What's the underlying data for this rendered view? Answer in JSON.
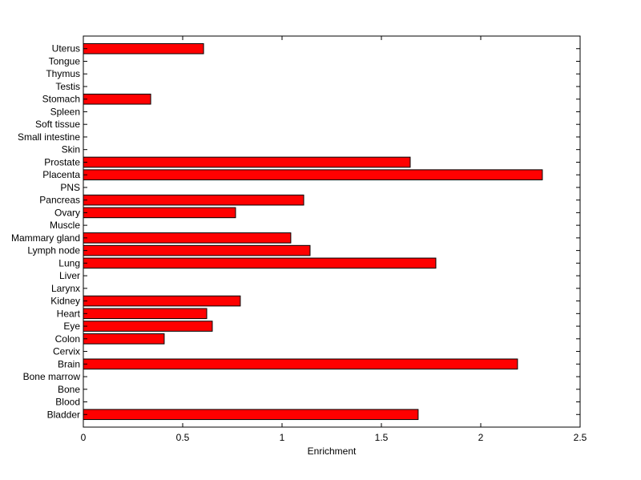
{
  "chart_data": {
    "type": "bar",
    "orientation": "horizontal",
    "title": "",
    "xlabel": "Enrichment",
    "ylabel": "",
    "xlim": [
      0,
      2.5
    ],
    "xticks": [
      0,
      0.5,
      1,
      1.5,
      2,
      2.5
    ],
    "xtick_labels": [
      "0",
      "0.5",
      "1",
      "1.5",
      "2",
      "2.5"
    ],
    "grid": false,
    "bar_color": "#ff0000",
    "categories": [
      "Bladder",
      "Blood",
      "Bone",
      "Bone marrow",
      "Brain",
      "Cervix",
      "Colon",
      "Eye",
      "Heart",
      "Kidney",
      "Larynx",
      "Liver",
      "Lung",
      "Lymph node",
      "Mammary gland",
      "Muscle",
      "Ovary",
      "Pancreas",
      "PNS",
      "Placenta",
      "Prostate",
      "Skin",
      "Small intestine",
      "Soft tissue",
      "Spleen",
      "Stomach",
      "Testis",
      "Thymus",
      "Tongue",
      "Uterus"
    ],
    "values": [
      1.685,
      0,
      0,
      0,
      2.185,
      0,
      0.407,
      0.649,
      0.621,
      0.79,
      0,
      0,
      1.774,
      1.141,
      1.044,
      0,
      0.766,
      1.109,
      0,
      2.31,
      1.645,
      0,
      0,
      0,
      0,
      0.339,
      0,
      0,
      0,
      0.605
    ]
  }
}
